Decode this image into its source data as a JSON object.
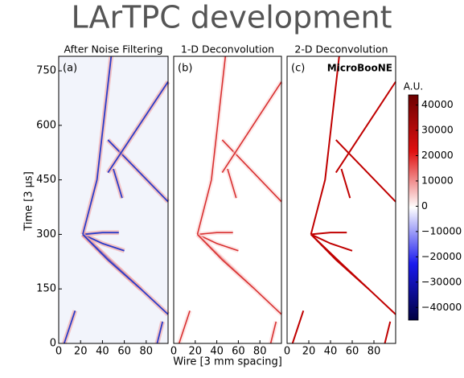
{
  "title": "LArTPC development",
  "chart_data": [
    {
      "type": "heatmap",
      "title": "After Noise Filtering",
      "label": "(a)",
      "ylabel": "Time [3 μs]",
      "xlim": [
        0,
        100
      ],
      "xticks": [
        0,
        20,
        40,
        60,
        80
      ],
      "ylim": [
        0,
        790
      ],
      "yticks": [
        0,
        150,
        300,
        450,
        600,
        750
      ]
    },
    {
      "type": "heatmap",
      "title": "1-D Deconvolution",
      "label": "(b)",
      "xlabel": "Wire [3 mm spacing]",
      "xlim": [
        0,
        100
      ],
      "xticks": [
        0,
        20,
        40,
        60,
        80
      ],
      "ylim": [
        0,
        790
      ]
    },
    {
      "type": "heatmap",
      "title": "2-D Deconvolution",
      "label": "(c)",
      "annotation": "MicroBooNE",
      "xlim": [
        0,
        100
      ],
      "xticks": [
        0,
        20,
        40,
        60,
        80
      ],
      "ylim": [
        0,
        790
      ],
      "colorbar": {
        "label": "A.U.",
        "lim": [
          -45000,
          44000
        ],
        "ticks": [
          40000,
          30000,
          20000,
          10000,
          0,
          {
            "value": -10000,
            "label": "−10000"
          },
          {
            "value": -20000,
            "label": "−20000"
          },
          {
            "value": -30000,
            "label": "−30000"
          },
          {
            "value": -40000,
            "label": "−40000"
          }
        ]
      }
    }
  ]
}
